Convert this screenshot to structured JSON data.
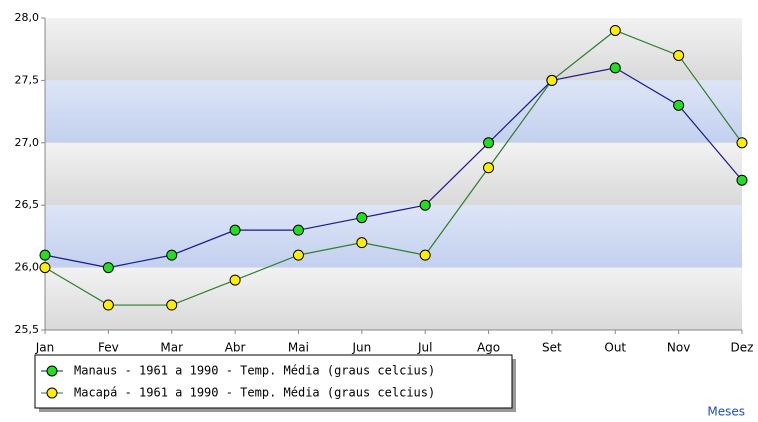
{
  "chart_data": {
    "type": "line",
    "x_label": "Meses",
    "categories": [
      "Jan",
      "Fev",
      "Mar",
      "Abr",
      "Mai",
      "Jun",
      "Jul",
      "Ago",
      "Set",
      "Out",
      "Nov",
      "Dez"
    ],
    "series": [
      {
        "name": "Manaus - 1961 a 1990 - Temp. Média (graus celcius)",
        "color": "#22dd22",
        "line_color": "#1a1a8c",
        "values": [
          26.1,
          26.0,
          26.1,
          26.3,
          26.3,
          26.4,
          26.5,
          27.0,
          27.5,
          27.6,
          27.3,
          26.7
        ]
      },
      {
        "name": "Macapá - 1961 a 1990 - Temp. Média (graus celcius)",
        "color": "#ffee00",
        "line_color": "#2e7d2e",
        "values": [
          26.0,
          25.7,
          25.7,
          25.9,
          26.1,
          26.2,
          26.1,
          26.8,
          27.5,
          27.9,
          27.7,
          27.0
        ]
      }
    ],
    "ylim": [
      25.5,
      28.0
    ],
    "yticks": [
      {
        "value": 25.5,
        "label": "25,5"
      },
      {
        "value": 26.0,
        "label": "26,0"
      },
      {
        "value": 26.5,
        "label": "26,5"
      },
      {
        "value": 27.0,
        "label": "27,0"
      },
      {
        "value": 27.5,
        "label": "27,5"
      },
      {
        "value": 28.0,
        "label": "28,0"
      }
    ],
    "legend": "bottom-left"
  }
}
